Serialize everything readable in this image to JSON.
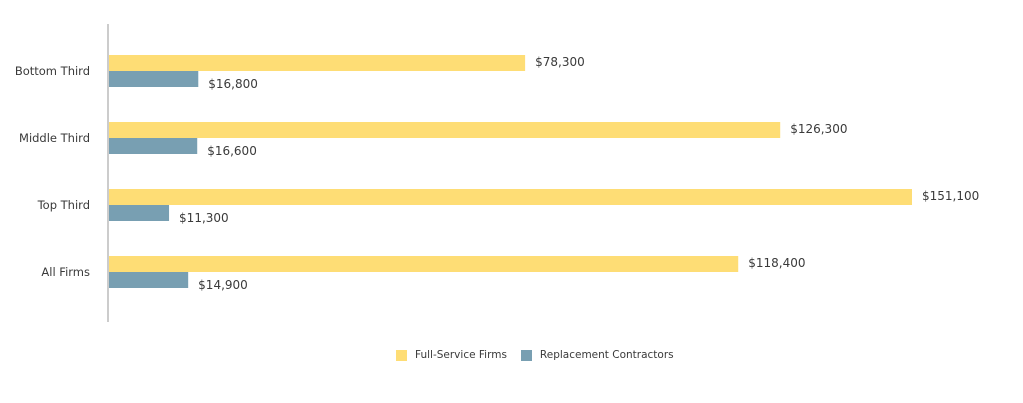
{
  "chart_data": {
    "type": "bar",
    "orientation": "horizontal",
    "title": "",
    "xlabel": "",
    "ylabel": "",
    "xlim": [
      0,
      151100
    ],
    "grid": false,
    "legend_position": "bottom-center",
    "categories": [
      "Bottom Third",
      "Middle Third",
      "Top Third",
      "All Firms"
    ],
    "series": [
      {
        "name": "Full-Service Firms",
        "color": "#FEDD75",
        "values": [
          78300,
          126300,
          151100,
          118400
        ],
        "labels": [
          "$78,300",
          "$126,300",
          "$151,100",
          "$118,400"
        ]
      },
      {
        "name": "Replacement Contractors",
        "color": "#789FB2",
        "values": [
          16800,
          16600,
          11300,
          14900
        ],
        "labels": [
          "$16,800",
          "$16,600",
          "$11,300",
          "$14,900"
        ]
      }
    ]
  }
}
